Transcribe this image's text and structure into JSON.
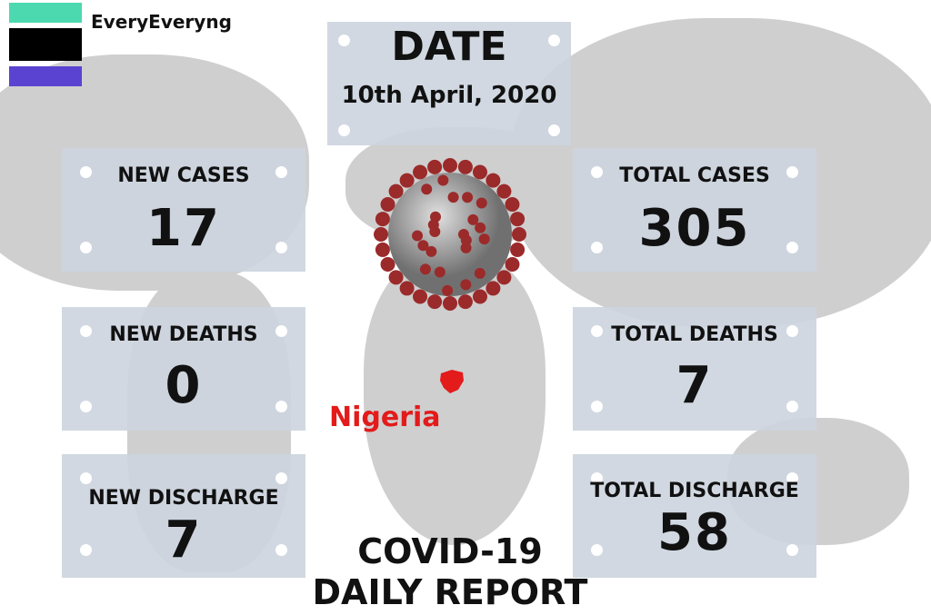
{
  "brand": {
    "name": "EveryEveryng",
    "colors": {
      "top": "#4dd9b0",
      "middle": "#000000",
      "bottom": "#5a43d0"
    }
  },
  "date": {
    "label": "DATE",
    "value": "10th April, 2020"
  },
  "stats": {
    "new_cases": {
      "label": "NEW CASES",
      "value": "17"
    },
    "total_cases": {
      "label": "TOTAL CASES",
      "value": "305"
    },
    "new_deaths": {
      "label": "NEW DEATHS",
      "value": "0"
    },
    "total_deaths": {
      "label": "TOTAL DEATHS",
      "value": "7"
    },
    "new_discharge": {
      "label": "NEW DISCHARGE",
      "value": "7"
    },
    "total_discharge": {
      "label": "TOTAL DISCHARGE",
      "value": "58"
    }
  },
  "map_label": "Nigeria",
  "footer": {
    "line1": "COVID-19",
    "line2": "DAILY REPORT"
  },
  "colors": {
    "box": "#cdd5de",
    "highlight": "#e31b1b",
    "virus": "#9b2a2a"
  }
}
